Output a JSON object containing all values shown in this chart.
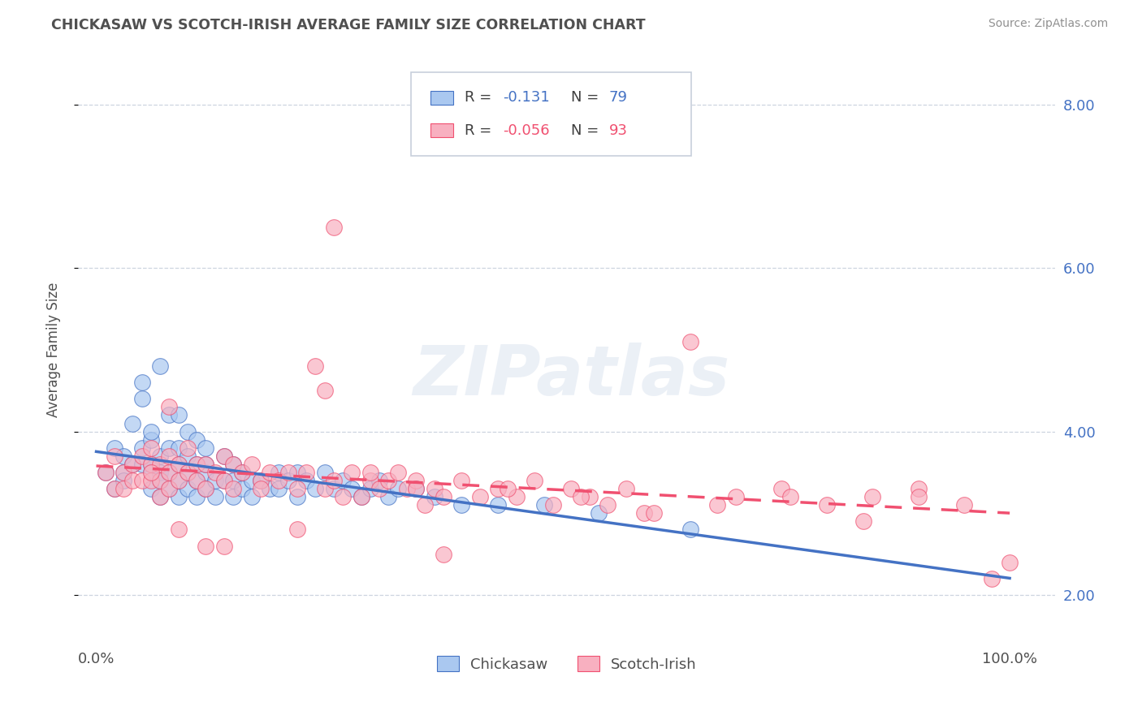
{
  "title": "CHICKASAW VS SCOTCH-IRISH AVERAGE FAMILY SIZE CORRELATION CHART",
  "source": "Source: ZipAtlas.com",
  "ylabel": "Average Family Size",
  "legend_label1": "Chickasaw",
  "legend_label2": "Scotch-Irish",
  "r1": -0.131,
  "n1": 79,
  "r2": -0.056,
  "n2": 93,
  "yticks": [
    2.0,
    4.0,
    6.0,
    8.0
  ],
  "ymin": 1.4,
  "ymax": 8.6,
  "xmin": -0.02,
  "xmax": 1.05,
  "color_chickasaw": "#aac8f0",
  "color_scotch": "#f8b0c0",
  "color_line1": "#4472c4",
  "color_line2": "#f05070",
  "background": "#ffffff",
  "grid_color": "#c8d0dc",
  "title_color": "#505050",
  "source_color": "#909090",
  "chickasaw_x": [
    0.01,
    0.02,
    0.02,
    0.03,
    0.03,
    0.03,
    0.04,
    0.04,
    0.05,
    0.05,
    0.05,
    0.05,
    0.06,
    0.06,
    0.06,
    0.06,
    0.06,
    0.07,
    0.07,
    0.07,
    0.07,
    0.07,
    0.08,
    0.08,
    0.08,
    0.08,
    0.09,
    0.09,
    0.09,
    0.09,
    0.09,
    0.1,
    0.1,
    0.1,
    0.1,
    0.11,
    0.11,
    0.11,
    0.11,
    0.12,
    0.12,
    0.12,
    0.12,
    0.13,
    0.13,
    0.14,
    0.14,
    0.15,
    0.15,
    0.15,
    0.16,
    0.16,
    0.17,
    0.17,
    0.18,
    0.19,
    0.2,
    0.2,
    0.21,
    0.22,
    0.22,
    0.23,
    0.24,
    0.25,
    0.26,
    0.27,
    0.28,
    0.29,
    0.3,
    0.31,
    0.32,
    0.33,
    0.35,
    0.37,
    0.4,
    0.44,
    0.49,
    0.55,
    0.65
  ],
  "chickasaw_y": [
    3.5,
    3.3,
    3.8,
    3.5,
    3.7,
    3.4,
    3.6,
    4.1,
    3.8,
    4.4,
    3.6,
    4.6,
    3.9,
    3.6,
    3.5,
    3.3,
    4.0,
    4.8,
    3.7,
    3.5,
    3.4,
    3.2,
    4.2,
    3.8,
    3.5,
    3.3,
    4.2,
    3.8,
    3.6,
    3.4,
    3.2,
    4.0,
    3.7,
    3.5,
    3.3,
    3.9,
    3.6,
    3.4,
    3.2,
    3.8,
    3.5,
    3.3,
    3.6,
    3.4,
    3.2,
    3.7,
    3.4,
    3.6,
    3.4,
    3.2,
    3.5,
    3.3,
    3.4,
    3.2,
    3.4,
    3.3,
    3.5,
    3.3,
    3.4,
    3.5,
    3.2,
    3.4,
    3.3,
    3.5,
    3.3,
    3.4,
    3.3,
    3.2,
    3.3,
    3.4,
    3.2,
    3.3,
    3.3,
    3.2,
    3.1,
    3.1,
    3.1,
    3.0,
    2.8
  ],
  "scotch_x": [
    0.01,
    0.02,
    0.02,
    0.03,
    0.03,
    0.04,
    0.04,
    0.05,
    0.05,
    0.06,
    0.06,
    0.06,
    0.07,
    0.07,
    0.07,
    0.08,
    0.08,
    0.08,
    0.08,
    0.09,
    0.09,
    0.1,
    0.1,
    0.11,
    0.11,
    0.12,
    0.12,
    0.13,
    0.14,
    0.14,
    0.15,
    0.15,
    0.16,
    0.17,
    0.18,
    0.19,
    0.2,
    0.21,
    0.22,
    0.23,
    0.24,
    0.25,
    0.25,
    0.26,
    0.27,
    0.28,
    0.29,
    0.3,
    0.31,
    0.32,
    0.33,
    0.34,
    0.35,
    0.36,
    0.37,
    0.38,
    0.4,
    0.42,
    0.44,
    0.46,
    0.48,
    0.5,
    0.52,
    0.54,
    0.56,
    0.58,
    0.6,
    0.65,
    0.7,
    0.75,
    0.8,
    0.85,
    0.9,
    0.95,
    1.0,
    0.14,
    0.22,
    0.3,
    0.38,
    0.45,
    0.53,
    0.61,
    0.68,
    0.76,
    0.84,
    0.9,
    0.98,
    0.06,
    0.09,
    0.12,
    0.18,
    0.26,
    0.35
  ],
  "scotch_y": [
    3.5,
    3.3,
    3.7,
    3.5,
    3.3,
    3.6,
    3.4,
    3.7,
    3.4,
    3.6,
    3.4,
    3.8,
    3.6,
    3.4,
    3.2,
    4.3,
    3.7,
    3.5,
    3.3,
    3.6,
    3.4,
    3.8,
    3.5,
    3.6,
    3.4,
    3.6,
    3.3,
    3.5,
    3.7,
    3.4,
    3.6,
    3.3,
    3.5,
    3.6,
    3.4,
    3.5,
    3.4,
    3.5,
    3.3,
    3.5,
    4.8,
    3.3,
    4.5,
    3.4,
    3.2,
    3.5,
    3.2,
    3.4,
    3.3,
    3.4,
    3.5,
    3.3,
    3.4,
    3.1,
    3.3,
    3.2,
    3.4,
    3.2,
    3.3,
    3.2,
    3.4,
    3.1,
    3.3,
    3.2,
    3.1,
    3.3,
    3.0,
    5.1,
    3.2,
    3.3,
    3.1,
    3.2,
    3.3,
    3.1,
    2.4,
    2.6,
    2.8,
    3.5,
    2.5,
    3.3,
    3.2,
    3.0,
    3.1,
    3.2,
    2.9,
    3.2,
    2.2,
    3.5,
    2.8,
    2.6,
    3.3,
    6.5,
    3.3
  ]
}
